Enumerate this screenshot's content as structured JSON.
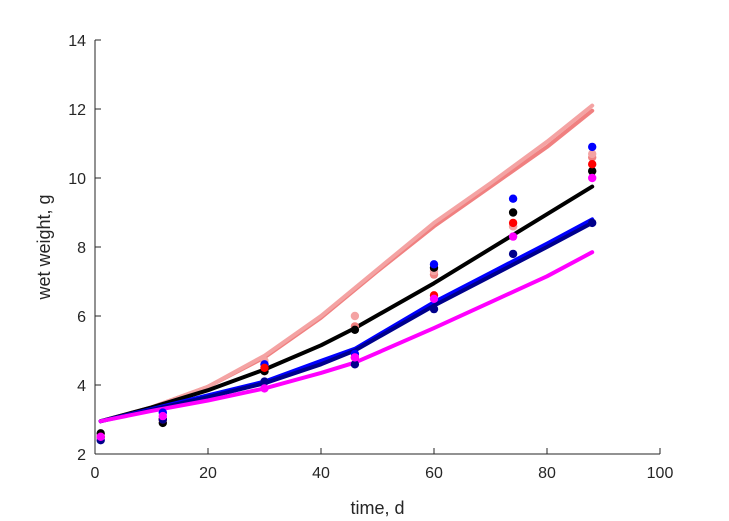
{
  "chart_data": {
    "type": "scatter",
    "title": "",
    "xlabel": "time, d",
    "ylabel": "wet weight, g",
    "xlim": [
      0,
      100
    ],
    "ylim": [
      2,
      14
    ],
    "xticks": [
      0,
      20,
      40,
      60,
      80,
      100
    ],
    "yticks": [
      2,
      4,
      6,
      8,
      10,
      12,
      14
    ],
    "xtick_labels": [
      "0",
      "20",
      "40",
      "60",
      "80",
      "100"
    ],
    "ytick_labels": [
      "2",
      "4",
      "6",
      "8",
      "10",
      "12",
      "14"
    ],
    "grid": false,
    "legend": "none",
    "series": [
      {
        "color": "#f08080",
        "points": [
          [
            1,
            2.5
          ],
          [
            12,
            3.0
          ],
          [
            30,
            4.6
          ],
          [
            46,
            5.7
          ],
          [
            60,
            7.2
          ],
          [
            74,
            8.6
          ],
          [
            88,
            10.6
          ]
        ],
        "curve": [
          [
            1,
            2.95
          ],
          [
            10,
            3.35
          ],
          [
            20,
            3.95
          ],
          [
            30,
            4.8
          ],
          [
            40,
            5.95
          ],
          [
            50,
            7.3
          ],
          [
            60,
            8.6
          ],
          [
            70,
            9.75
          ],
          [
            80,
            10.9
          ],
          [
            88,
            11.95
          ]
        ]
      },
      {
        "color": "#f4a3a3",
        "points": [
          [
            1,
            2.5
          ],
          [
            12,
            3.0
          ],
          [
            30,
            4.7
          ],
          [
            46,
            6.0
          ],
          [
            60,
            7.3
          ],
          [
            74,
            8.6
          ],
          [
            88,
            10.7
          ]
        ],
        "curve": [
          [
            1,
            2.95
          ],
          [
            10,
            3.35
          ],
          [
            20,
            3.95
          ],
          [
            30,
            4.85
          ],
          [
            40,
            6.0
          ],
          [
            50,
            7.35
          ],
          [
            60,
            8.7
          ],
          [
            70,
            9.85
          ],
          [
            80,
            11.05
          ],
          [
            88,
            12.1
          ]
        ]
      },
      {
        "color": "#000000",
        "points": [
          [
            1,
            2.6
          ],
          [
            12,
            2.9
          ],
          [
            30,
            4.4
          ],
          [
            46,
            5.6
          ],
          [
            60,
            7.4
          ],
          [
            74,
            9.0
          ],
          [
            88,
            10.2
          ]
        ],
        "curve": [
          [
            1,
            2.95
          ],
          [
            10,
            3.35
          ],
          [
            20,
            3.85
          ],
          [
            30,
            4.45
          ],
          [
            40,
            5.15
          ],
          [
            46,
            5.65
          ],
          [
            60,
            6.95
          ],
          [
            70,
            7.95
          ],
          [
            80,
            8.95
          ],
          [
            88,
            9.75
          ]
        ]
      },
      {
        "color": "#0000ff",
        "points": [
          [
            1,
            2.5
          ],
          [
            12,
            3.2
          ],
          [
            30,
            4.6
          ],
          [
            46,
            4.9
          ],
          [
            60,
            7.5
          ],
          [
            74,
            9.4
          ],
          [
            88,
            10.9
          ]
        ],
        "curve": [
          [
            1,
            2.95
          ],
          [
            10,
            3.3
          ],
          [
            20,
            3.7
          ],
          [
            30,
            4.1
          ],
          [
            40,
            4.7
          ],
          [
            46,
            5.05
          ],
          [
            60,
            6.4
          ],
          [
            70,
            7.25
          ],
          [
            80,
            8.1
          ],
          [
            88,
            8.8
          ]
        ]
      },
      {
        "color": "#ff0000",
        "points": [
          [
            1,
            2.5
          ],
          [
            12,
            3.0
          ],
          [
            30,
            4.5
          ],
          [
            46,
            4.8
          ],
          [
            60,
            6.6
          ],
          [
            74,
            8.7
          ],
          [
            88,
            10.4
          ]
        ],
        "curve": []
      },
      {
        "color": "#00008b",
        "points": [
          [
            1,
            2.4
          ],
          [
            12,
            3.0
          ],
          [
            30,
            4.1
          ],
          [
            46,
            4.6
          ],
          [
            60,
            6.2
          ],
          [
            74,
            7.8
          ],
          [
            88,
            8.7
          ]
        ],
        "curve": [
          [
            1,
            2.95
          ],
          [
            10,
            3.28
          ],
          [
            20,
            3.65
          ],
          [
            30,
            4.05
          ],
          [
            40,
            4.6
          ],
          [
            46,
            5.0
          ],
          [
            60,
            6.3
          ],
          [
            70,
            7.15
          ],
          [
            80,
            8.0
          ],
          [
            88,
            8.7
          ]
        ]
      },
      {
        "color": "#ff00ff",
        "points": [
          [
            1,
            2.5
          ],
          [
            12,
            3.1
          ],
          [
            30,
            3.9
          ],
          [
            46,
            4.8
          ],
          [
            60,
            6.5
          ],
          [
            74,
            8.3
          ],
          [
            88,
            10.0
          ]
        ],
        "curve": [
          [
            1,
            2.95
          ],
          [
            10,
            3.25
          ],
          [
            20,
            3.55
          ],
          [
            30,
            3.9
          ],
          [
            40,
            4.35
          ],
          [
            46,
            4.65
          ],
          [
            60,
            5.65
          ],
          [
            70,
            6.4
          ],
          [
            80,
            7.15
          ],
          [
            88,
            7.85
          ]
        ]
      }
    ]
  }
}
